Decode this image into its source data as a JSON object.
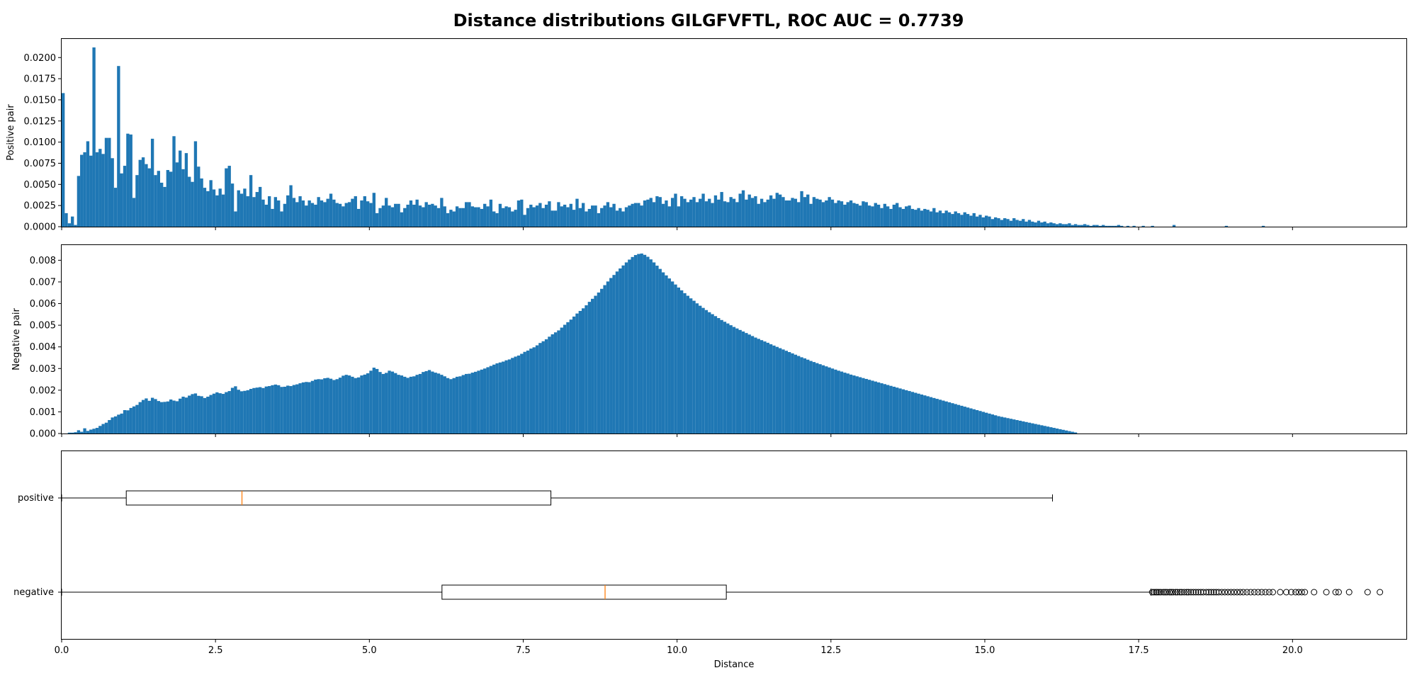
{
  "chart_data": {
    "title": "Distance distributions GILGFVFTL, ROC AUC = 0.7739",
    "xlabel": "Distance",
    "xlim": [
      0,
      21.85
    ],
    "x_ticks": [
      "0.0",
      "2.5",
      "5.0",
      "7.5",
      "10.0",
      "12.5",
      "15.0",
      "17.5",
      "20.0"
    ],
    "bar_color": "#1f77b4",
    "median_color": "#ff7f0e",
    "grid": false,
    "bin_width": 0.05,
    "panels": [
      {
        "type": "bar",
        "ylabel": "Positive pair",
        "ylim": [
          0,
          0.0222
        ],
        "y_ticks": [
          "0.0000",
          "0.0025",
          "0.0050",
          "0.0075",
          "0.0100",
          "0.0125",
          "0.0150",
          "0.0175",
          "0.0200"
        ],
        "bin_start": 0.0,
        "values": [
          0.0158,
          0.0016,
          0.0004,
          0.0012,
          0.0002,
          0.006,
          0.0085,
          0.0088,
          0.0101,
          0.0084,
          0.0212,
          0.0088,
          0.0092,
          0.0086,
          0.0105,
          0.0105,
          0.0081,
          0.0046,
          0.019,
          0.0063,
          0.0072,
          0.011,
          0.0109,
          0.0034,
          0.0061,
          0.0079,
          0.0082,
          0.0074,
          0.0069,
          0.0104,
          0.0061,
          0.0066,
          0.0052,
          0.0047,
          0.0067,
          0.0065,
          0.0107,
          0.0076,
          0.009,
          0.0068,
          0.0087,
          0.0059,
          0.0053,
          0.0101,
          0.0071,
          0.0057,
          0.0046,
          0.0042,
          0.0055,
          0.0044,
          0.0037,
          0.0045,
          0.0038,
          0.0069,
          0.0072,
          0.0051,
          0.0018,
          0.0043,
          0.0039,
          0.0045,
          0.0036,
          0.0061,
          0.0035,
          0.0041,
          0.0047,
          0.0032,
          0.0026,
          0.0036,
          0.0021,
          0.0035,
          0.0031,
          0.0018,
          0.0027,
          0.0037,
          0.0049,
          0.0034,
          0.0029,
          0.0036,
          0.0031,
          0.0025,
          0.0031,
          0.0028,
          0.0026,
          0.0035,
          0.0031,
          0.0029,
          0.0033,
          0.0039,
          0.0032,
          0.0028,
          0.0027,
          0.0024,
          0.0028,
          0.0029,
          0.0033,
          0.0036,
          0.0021,
          0.0031,
          0.0036,
          0.003,
          0.0028,
          0.004,
          0.0016,
          0.0022,
          0.0025,
          0.0034,
          0.0025,
          0.0023,
          0.0027,
          0.0027,
          0.0017,
          0.0022,
          0.0026,
          0.0031,
          0.0026,
          0.0032,
          0.0025,
          0.0023,
          0.0029,
          0.0026,
          0.0027,
          0.0025,
          0.0022,
          0.0034,
          0.0024,
          0.0016,
          0.002,
          0.0018,
          0.0024,
          0.0022,
          0.0022,
          0.0029,
          0.0029,
          0.0024,
          0.0023,
          0.0023,
          0.0021,
          0.0027,
          0.0024,
          0.0032,
          0.0018,
          0.0016,
          0.0027,
          0.0022,
          0.0024,
          0.0023,
          0.0018,
          0.002,
          0.0031,
          0.0032,
          0.0014,
          0.0022,
          0.0026,
          0.0023,
          0.0025,
          0.0028,
          0.0022,
          0.0026,
          0.003,
          0.0019,
          0.0019,
          0.0029,
          0.0024,
          0.0026,
          0.0023,
          0.0027,
          0.002,
          0.0033,
          0.0022,
          0.0028,
          0.0018,
          0.0021,
          0.0025,
          0.0025,
          0.0016,
          0.0022,
          0.0025,
          0.0029,
          0.0023,
          0.0027,
          0.0019,
          0.0022,
          0.0018,
          0.0023,
          0.0025,
          0.0027,
          0.0028,
          0.0028,
          0.0025,
          0.0031,
          0.0032,
          0.0034,
          0.0029,
          0.0036,
          0.0035,
          0.0027,
          0.0031,
          0.0024,
          0.0034,
          0.0039,
          0.0024,
          0.0036,
          0.0033,
          0.0029,
          0.0032,
          0.0035,
          0.0029,
          0.0033,
          0.0039,
          0.003,
          0.0033,
          0.0028,
          0.0037,
          0.0032,
          0.0041,
          0.003,
          0.0029,
          0.0035,
          0.0033,
          0.0029,
          0.0039,
          0.0043,
          0.0032,
          0.0038,
          0.0034,
          0.0036,
          0.0027,
          0.0033,
          0.0029,
          0.0032,
          0.0037,
          0.0033,
          0.004,
          0.0038,
          0.0035,
          0.0031,
          0.0031,
          0.0034,
          0.0033,
          0.0029,
          0.0042,
          0.0035,
          0.0038,
          0.0027,
          0.0035,
          0.0033,
          0.0032,
          0.0029,
          0.0031,
          0.0035,
          0.0032,
          0.0028,
          0.0031,
          0.003,
          0.0026,
          0.0029,
          0.0031,
          0.0028,
          0.0027,
          0.0025,
          0.003,
          0.0029,
          0.0025,
          0.0024,
          0.0028,
          0.0026,
          0.0022,
          0.0027,
          0.0024,
          0.0021,
          0.0026,
          0.0028,
          0.0023,
          0.0021,
          0.0024,
          0.0025,
          0.0021,
          0.002,
          0.0022,
          0.0019,
          0.0021,
          0.002,
          0.0018,
          0.0022,
          0.0017,
          0.0019,
          0.0016,
          0.0019,
          0.0017,
          0.0015,
          0.0018,
          0.0016,
          0.0014,
          0.0017,
          0.0015,
          0.0013,
          0.0016,
          0.0012,
          0.0014,
          0.0011,
          0.0013,
          0.0012,
          0.0009,
          0.0011,
          0.001,
          0.0008,
          0.001,
          0.0009,
          0.0007,
          0.001,
          0.0008,
          0.0007,
          0.0009,
          0.0006,
          0.0008,
          0.0006,
          0.0005,
          0.0007,
          0.0005,
          0.0006,
          0.0004,
          0.0005,
          0.0004,
          0.0003,
          0.0004,
          0.0003,
          0.0003,
          0.0004,
          0.0002,
          0.0003,
          0.0002,
          0.0002,
          0.0003,
          0.0002,
          0.0001,
          0.0002,
          0.0002,
          0.0001,
          0.0002,
          0.0001,
          0.0001,
          0.0001,
          0.0001,
          0.0002,
          0.0001,
          0,
          0.0001,
          0,
          0.0001,
          0,
          0,
          0.0001,
          0,
          0,
          0.0001,
          0,
          0,
          0,
          0,
          0,
          0,
          0.0002,
          0,
          0,
          0,
          0,
          0,
          0,
          0,
          0,
          0,
          0,
          0,
          0,
          0,
          0,
          0,
          0,
          0.0001,
          0,
          0,
          0,
          0,
          0,
          0,
          0,
          0,
          0,
          0,
          0,
          0.0001
        ]
      },
      {
        "type": "bar",
        "ylabel": "Negative pair",
        "ylim": [
          0,
          0.0087
        ],
        "y_ticks": [
          "0.000",
          "0.001",
          "0.002",
          "0.003",
          "0.004",
          "0.005",
          "0.006",
          "0.007",
          "0.008"
        ],
        "bin_start": 0.1,
        "values": [
          4e-05,
          4e-05,
          6e-05,
          0.00015,
          8e-05,
          0.00024,
          0.00012,
          0.00018,
          0.00022,
          0.00026,
          0.00035,
          0.00044,
          0.0005,
          0.00062,
          0.00074,
          0.00079,
          0.00087,
          0.00092,
          0.00108,
          0.00107,
          0.00118,
          0.00125,
          0.00132,
          0.00145,
          0.00155,
          0.00162,
          0.00151,
          0.00165,
          0.00159,
          0.0015,
          0.00145,
          0.00146,
          0.00148,
          0.00157,
          0.00152,
          0.00149,
          0.00161,
          0.0017,
          0.00166,
          0.00175,
          0.00182,
          0.00185,
          0.00174,
          0.00172,
          0.00164,
          0.0017,
          0.00178,
          0.00184,
          0.0019,
          0.00186,
          0.00183,
          0.00191,
          0.00196,
          0.00211,
          0.00218,
          0.00202,
          0.00195,
          0.00197,
          0.002,
          0.00206,
          0.0021,
          0.00212,
          0.00214,
          0.0021,
          0.00217,
          0.00219,
          0.00223,
          0.00226,
          0.00223,
          0.00215,
          0.00216,
          0.00221,
          0.00219,
          0.00224,
          0.00227,
          0.00232,
          0.00236,
          0.00238,
          0.00237,
          0.00243,
          0.00249,
          0.00251,
          0.0025,
          0.00255,
          0.00257,
          0.00253,
          0.00247,
          0.00251,
          0.00258,
          0.00267,
          0.00271,
          0.00268,
          0.00262,
          0.00256,
          0.00259,
          0.00268,
          0.00272,
          0.00278,
          0.0029,
          0.00304,
          0.00298,
          0.00284,
          0.00275,
          0.0028,
          0.0029,
          0.00286,
          0.00279,
          0.00271,
          0.00268,
          0.00262,
          0.00257,
          0.00262,
          0.00264,
          0.00271,
          0.00275,
          0.00284,
          0.00288,
          0.00293,
          0.00286,
          0.00281,
          0.00277,
          0.00271,
          0.00264,
          0.00256,
          0.00251,
          0.00256,
          0.00262,
          0.00264,
          0.0027,
          0.00275,
          0.00276,
          0.00281,
          0.00285,
          0.0029,
          0.00295,
          0.003,
          0.00306,
          0.00312,
          0.00318,
          0.00324,
          0.00328,
          0.00332,
          0.00338,
          0.00342,
          0.00349,
          0.00355,
          0.0036,
          0.00368,
          0.00377,
          0.00383,
          0.00392,
          0.00398,
          0.00407,
          0.00418,
          0.00426,
          0.00435,
          0.00447,
          0.00458,
          0.00467,
          0.00476,
          0.00489,
          0.00502,
          0.00514,
          0.00526,
          0.0054,
          0.00554,
          0.00566,
          0.00578,
          0.00592,
          0.00608,
          0.00622,
          0.00636,
          0.00651,
          0.00668,
          0.00685,
          0.00702,
          0.00718,
          0.00732,
          0.00748,
          0.00762,
          0.00776,
          0.0079,
          0.00803,
          0.00815,
          0.00824,
          0.00829,
          0.00831,
          0.00825,
          0.00816,
          0.00804,
          0.0079,
          0.00775,
          0.0076,
          0.00744,
          0.0073,
          0.00716,
          0.00702,
          0.00688,
          0.00674,
          0.00661,
          0.00648,
          0.00636,
          0.00624,
          0.00613,
          0.00601,
          0.0059,
          0.0058,
          0.0057,
          0.0056,
          0.00551,
          0.00542,
          0.00533,
          0.00524,
          0.00516,
          0.00508,
          0.005,
          0.00492,
          0.00485,
          0.00478,
          0.00471,
          0.00464,
          0.00457,
          0.0045,
          0.00443,
          0.00437,
          0.00431,
          0.00425,
          0.00419,
          0.00412,
          0.00406,
          0.004,
          0.00394,
          0.00388,
          0.00382,
          0.00376,
          0.0037,
          0.00364,
          0.00358,
          0.00352,
          0.00347,
          0.00341,
          0.00335,
          0.0033,
          0.00325,
          0.0032,
          0.00315,
          0.0031,
          0.00305,
          0.003,
          0.00295,
          0.0029,
          0.00286,
          0.00281,
          0.00277,
          0.00272,
          0.00268,
          0.00264,
          0.0026,
          0.00256,
          0.00252,
          0.00248,
          0.00244,
          0.0024,
          0.00236,
          0.00232,
          0.00228,
          0.00224,
          0.0022,
          0.00216,
          0.00212,
          0.00208,
          0.00204,
          0.002,
          0.00196,
          0.00192,
          0.00188,
          0.00184,
          0.0018,
          0.00176,
          0.00172,
          0.00168,
          0.00164,
          0.0016,
          0.00156,
          0.00152,
          0.00148,
          0.00144,
          0.0014,
          0.00136,
          0.00132,
          0.00128,
          0.00124,
          0.0012,
          0.00116,
          0.00112,
          0.00108,
          0.00104,
          0.001,
          0.00096,
          0.00092,
          0.00088,
          0.00084,
          0.0008,
          0.00077,
          0.00074,
          0.00071,
          0.00068,
          0.00065,
          0.00062,
          0.00059,
          0.00056,
          0.00053,
          0.0005,
          0.00047,
          0.00044,
          0.00041,
          0.00038,
          0.00035,
          0.00032,
          0.00029,
          0.00026,
          0.00023,
          0.0002,
          0.00017,
          0.00014,
          0.00011,
          8e-05,
          5e-05
        ]
      },
      {
        "type": "boxplot",
        "categories": [
          "positive",
          "negative"
        ],
        "boxes": [
          {
            "label": "positive",
            "whisker_low": 0.0,
            "q1": 1.05,
            "median": 2.93,
            "q3": 7.95,
            "whisker_high": 16.1,
            "outliers": []
          },
          {
            "label": "negative",
            "whisker_low": 0.0,
            "q1": 6.18,
            "median": 8.83,
            "q3": 10.8,
            "whisker_high": 17.7,
            "outliers": [
              17.72,
              17.75,
              17.78,
              17.8,
              17.83,
              17.86,
              17.9,
              17.93,
              17.96,
              18.0,
              18.03,
              18.06,
              18.1,
              18.13,
              18.17,
              18.2,
              18.24,
              18.28,
              18.31,
              18.35,
              18.39,
              18.43,
              18.47,
              18.51,
              18.55,
              18.6,
              18.64,
              18.68,
              18.72,
              18.76,
              18.8,
              18.85,
              18.9,
              18.95,
              19.0,
              19.05,
              19.1,
              19.15,
              19.2,
              19.26,
              19.32,
              19.38,
              19.44,
              19.5,
              19.56,
              19.62,
              19.68,
              19.8,
              19.9,
              19.98,
              20.05,
              20.1,
              20.15,
              20.2,
              20.35,
              20.55,
              20.7,
              20.75,
              20.92,
              21.22,
              21.42
            ]
          }
        ]
      }
    ]
  }
}
